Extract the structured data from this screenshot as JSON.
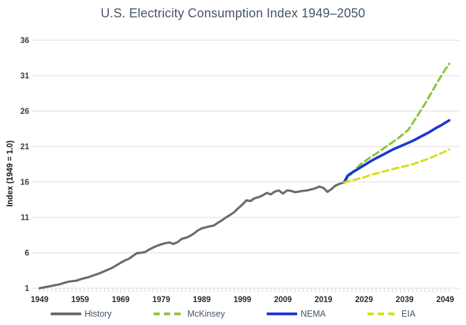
{
  "colors": {
    "title": "#44546A",
    "grid": "#E4E4E4",
    "axis_tick": "#CFCFCF",
    "y_tick_label": "#3F3F3F",
    "x_tick_label": "#2B2B2B",
    "legend_text": "#44546A",
    "history": "#6B6B6B",
    "mckinsey": "#8CC63F",
    "nema": "#1C38CE",
    "eia": "#D9DE20"
  },
  "chart_data": {
    "type": "line",
    "title": "U.S. Electricity Consumption Index 1949–2050",
    "xlabel": "",
    "ylabel": "Index (1949 = 1.0)",
    "xlim": [
      1949,
      2050
    ],
    "ylim": [
      1,
      36
    ],
    "x_ticks": [
      1949,
      1959,
      1969,
      1979,
      1989,
      1999,
      2009,
      2019,
      2029,
      2039,
      2049
    ],
    "y_ticks": [
      1,
      6,
      11,
      16,
      21,
      26,
      31,
      36
    ],
    "grid": "horizontal",
    "legend_position": "bottom",
    "series": [
      {
        "name": "History",
        "color": "#6B6B6B",
        "style": "solid",
        "x": [
          1949,
          1950,
          1951,
          1952,
          1953,
          1954,
          1955,
          1956,
          1957,
          1958,
          1959,
          1960,
          1961,
          1962,
          1963,
          1964,
          1965,
          1966,
          1967,
          1968,
          1969,
          1970,
          1971,
          1972,
          1973,
          1974,
          1975,
          1976,
          1977,
          1978,
          1979,
          1980,
          1981,
          1982,
          1983,
          1984,
          1985,
          1986,
          1987,
          1988,
          1989,
          1990,
          1991,
          1992,
          1993,
          1994,
          1995,
          1996,
          1997,
          1998,
          1999,
          2000,
          2001,
          2002,
          2003,
          2004,
          2005,
          2006,
          2007,
          2008,
          2009,
          2010,
          2011,
          2012,
          2013,
          2014,
          2015,
          2016,
          2017,
          2018,
          2019,
          2020,
          2021,
          2022,
          2023,
          2024
        ],
        "values": [
          1.0,
          1.1,
          1.22,
          1.32,
          1.45,
          1.55,
          1.75,
          1.9,
          2.0,
          2.05,
          2.25,
          2.4,
          2.55,
          2.75,
          2.95,
          3.15,
          3.4,
          3.65,
          3.9,
          4.25,
          4.6,
          4.9,
          5.15,
          5.55,
          5.95,
          6.0,
          6.1,
          6.45,
          6.75,
          7.0,
          7.2,
          7.35,
          7.45,
          7.25,
          7.5,
          7.95,
          8.1,
          8.35,
          8.7,
          9.15,
          9.45,
          9.6,
          9.75,
          9.85,
          10.25,
          10.6,
          11.0,
          11.35,
          11.75,
          12.3,
          12.8,
          13.4,
          13.3,
          13.7,
          13.85,
          14.1,
          14.45,
          14.25,
          14.65,
          14.8,
          14.35,
          14.8,
          14.75,
          14.55,
          14.65,
          14.75,
          14.8,
          14.95,
          15.1,
          15.35,
          15.15,
          14.6,
          15.0,
          15.5,
          15.75,
          15.9
        ]
      },
      {
        "name": "McKinsey",
        "color": "#8CC63F",
        "style": "dashed",
        "x": [
          2024,
          2025,
          2026,
          2027,
          2028,
          2029,
          2030,
          2031,
          2032,
          2033,
          2034,
          2035,
          2036,
          2037,
          2038,
          2039,
          2040,
          2041,
          2042,
          2043,
          2044,
          2045,
          2046,
          2047,
          2048,
          2049,
          2050
        ],
        "values": [
          15.9,
          16.6,
          17.25,
          17.85,
          18.4,
          18.85,
          19.25,
          19.65,
          20.0,
          20.4,
          20.8,
          21.2,
          21.6,
          22.0,
          22.45,
          22.9,
          23.4,
          24.3,
          25.2,
          26.1,
          27.0,
          28.0,
          29.0,
          30.0,
          30.95,
          31.85,
          32.7
        ]
      },
      {
        "name": "NEMA",
        "color": "#1C38CE",
        "style": "solid",
        "x": [
          2024,
          2025,
          2026,
          2027,
          2028,
          2029,
          2030,
          2031,
          2032,
          2033,
          2034,
          2035,
          2036,
          2037,
          2038,
          2039,
          2040,
          2041,
          2042,
          2043,
          2044,
          2045,
          2046,
          2047,
          2048,
          2049,
          2050
        ],
        "values": [
          15.9,
          16.9,
          17.3,
          17.65,
          18.0,
          18.35,
          18.7,
          19.05,
          19.35,
          19.65,
          19.95,
          20.25,
          20.55,
          20.8,
          21.05,
          21.3,
          21.55,
          21.8,
          22.1,
          22.4,
          22.7,
          23.0,
          23.35,
          23.7,
          24.0,
          24.35,
          24.7
        ]
      },
      {
        "name": "EIA",
        "color": "#D9DE20",
        "style": "dashed",
        "x": [
          2024,
          2025,
          2026,
          2027,
          2028,
          2029,
          2030,
          2031,
          2032,
          2033,
          2034,
          2035,
          2036,
          2037,
          2038,
          2039,
          2040,
          2041,
          2042,
          2043,
          2044,
          2045,
          2046,
          2047,
          2048,
          2049,
          2050
        ],
        "values": [
          15.9,
          16.05,
          16.2,
          16.35,
          16.5,
          16.65,
          16.85,
          17.05,
          17.2,
          17.35,
          17.5,
          17.65,
          17.8,
          17.95,
          18.1,
          18.2,
          18.35,
          18.5,
          18.7,
          18.9,
          19.1,
          19.3,
          19.55,
          19.8,
          20.05,
          20.3,
          20.6
        ]
      }
    ]
  }
}
